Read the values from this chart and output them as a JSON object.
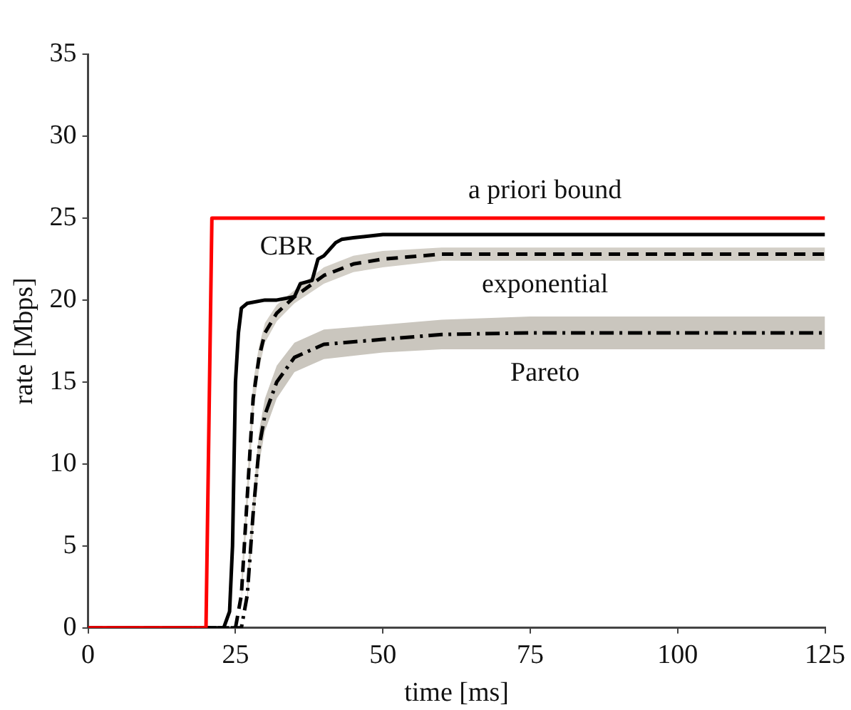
{
  "chart_data": {
    "type": "line",
    "xlabel": "time [ms]",
    "ylabel": "rate [Mbps]",
    "xlim": [
      0,
      125
    ],
    "ylim": [
      0,
      35
    ],
    "xticks": [
      0,
      25,
      50,
      75,
      100,
      125
    ],
    "yticks": [
      0,
      5,
      10,
      15,
      20,
      25,
      30,
      35
    ],
    "grid": false,
    "legend": false,
    "marker": "none",
    "series": [
      {
        "name": "a priori bound",
        "color": "#ff0000",
        "line_style": "solid",
        "x": [
          0,
          20,
          21,
          125
        ],
        "values": [
          0,
          0,
          25,
          25
        ]
      },
      {
        "name": "CBR",
        "color": "#000000",
        "line_style": "solid",
        "x": [
          0,
          23,
          24,
          24.5,
          25,
          25.5,
          26,
          27,
          30,
          32,
          35,
          36,
          38,
          39,
          40,
          42,
          43,
          45,
          50,
          125
        ],
        "values": [
          0,
          0,
          1,
          5,
          15,
          18,
          19.5,
          19.8,
          20,
          20,
          20.2,
          21,
          21.2,
          22.5,
          22.7,
          23.5,
          23.7,
          23.8,
          24,
          24
        ]
      },
      {
        "name": "exponential",
        "color": "#000000",
        "line_style": "dashed",
        "x": [
          0,
          25,
          26,
          27,
          28,
          29,
          30,
          32,
          35,
          40,
          45,
          50,
          60,
          125
        ],
        "values": [
          0,
          0,
          2,
          8,
          14,
          16.5,
          18,
          19.2,
          20.2,
          21.5,
          22.2,
          22.5,
          22.8,
          22.8
        ],
        "lower": [
          null,
          null,
          1.5,
          7,
          13,
          15.8,
          17.4,
          18.7,
          19.8,
          21,
          21.7,
          22,
          22.4,
          22.4
        ],
        "upper": [
          null,
          null,
          3,
          9,
          15,
          17.2,
          18.6,
          19.7,
          20.6,
          22,
          22.7,
          23,
          23.2,
          23.2
        ]
      },
      {
        "name": "Pareto",
        "color": "#000000",
        "line_style": "dashdot",
        "x": [
          0,
          26,
          27,
          28,
          29,
          30,
          32,
          35,
          40,
          50,
          60,
          75,
          125
        ],
        "values": [
          0,
          0,
          2,
          7,
          11,
          13,
          15,
          16.5,
          17.3,
          17.6,
          17.9,
          18,
          18
        ],
        "lower": [
          null,
          null,
          1.5,
          6,
          10,
          12,
          14,
          15.6,
          16.4,
          16.8,
          17,
          17,
          17
        ],
        "upper": [
          null,
          null,
          3,
          8,
          12,
          14,
          16,
          17.4,
          18.2,
          18.5,
          18.8,
          19,
          19
        ]
      }
    ]
  }
}
